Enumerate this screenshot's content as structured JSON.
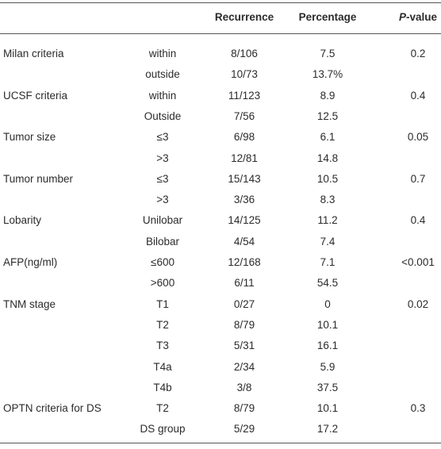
{
  "table": {
    "header": {
      "recurrence": "Recurrence",
      "percentage": "Percentage",
      "p_value": {
        "italic": "P",
        "text": "-value"
      }
    },
    "groups": [
      {
        "label": "Milan criteria",
        "p": "0.2",
        "rows": [
          {
            "sub": "within",
            "recurrence": "8/106",
            "percentage": "7.5"
          },
          {
            "sub": "outside",
            "recurrence": "10/73",
            "percentage": "13.7%"
          }
        ]
      },
      {
        "label": "UCSF criteria",
        "p": "0.4",
        "rows": [
          {
            "sub": "within",
            "recurrence": "11/123",
            "percentage": "8.9"
          },
          {
            "sub": "Outside",
            "recurrence": "7/56",
            "percentage": "12.5"
          }
        ]
      },
      {
        "label": "Tumor size",
        "p": "0.05",
        "rows": [
          {
            "sub": "≤3",
            "recurrence": "6/98",
            "percentage": "6.1"
          },
          {
            "sub": ">3",
            "recurrence": "12/81",
            "percentage": "14.8"
          }
        ]
      },
      {
        "label": "Tumor number",
        "p": "0.7",
        "rows": [
          {
            "sub": "≤3",
            "recurrence": "15/143",
            "percentage": "10.5"
          },
          {
            "sub": ">3",
            "recurrence": "3/36",
            "percentage": "8.3"
          }
        ]
      },
      {
        "label": "Lobarity",
        "p": "0.4",
        "rows": [
          {
            "sub": "Unilobar",
            "recurrence": "14/125",
            "percentage": "11.2"
          },
          {
            "sub": "Bilobar",
            "recurrence": "4/54",
            "percentage": "7.4"
          }
        ]
      },
      {
        "label": "AFP(ng/ml)",
        "p": "<0.001",
        "rows": [
          {
            "sub": "≤600",
            "recurrence": "12/168",
            "percentage": "7.1"
          },
          {
            "sub": ">600",
            "recurrence": "6/11",
            "percentage": "54.5"
          }
        ]
      },
      {
        "label": "TNM stage",
        "p": "0.02",
        "rows": [
          {
            "sub": "T1",
            "recurrence": "0/27",
            "percentage": "0"
          },
          {
            "sub": "T2",
            "recurrence": "8/79",
            "percentage": "10.1"
          },
          {
            "sub": "T3",
            "recurrence": "5/31",
            "percentage": "16.1"
          },
          {
            "sub": "T4a",
            "recurrence": "2/34",
            "percentage": "5.9"
          },
          {
            "sub": "T4b",
            "recurrence": "3/8",
            "percentage": "37.5"
          }
        ]
      },
      {
        "label": "OPTN criteria for DS",
        "p": "0.3",
        "rows": [
          {
            "sub": "T2",
            "recurrence": "8/79",
            "percentage": "10.1"
          },
          {
            "sub": "DS group",
            "recurrence": "5/29",
            "percentage": "17.2"
          }
        ]
      }
    ]
  }
}
